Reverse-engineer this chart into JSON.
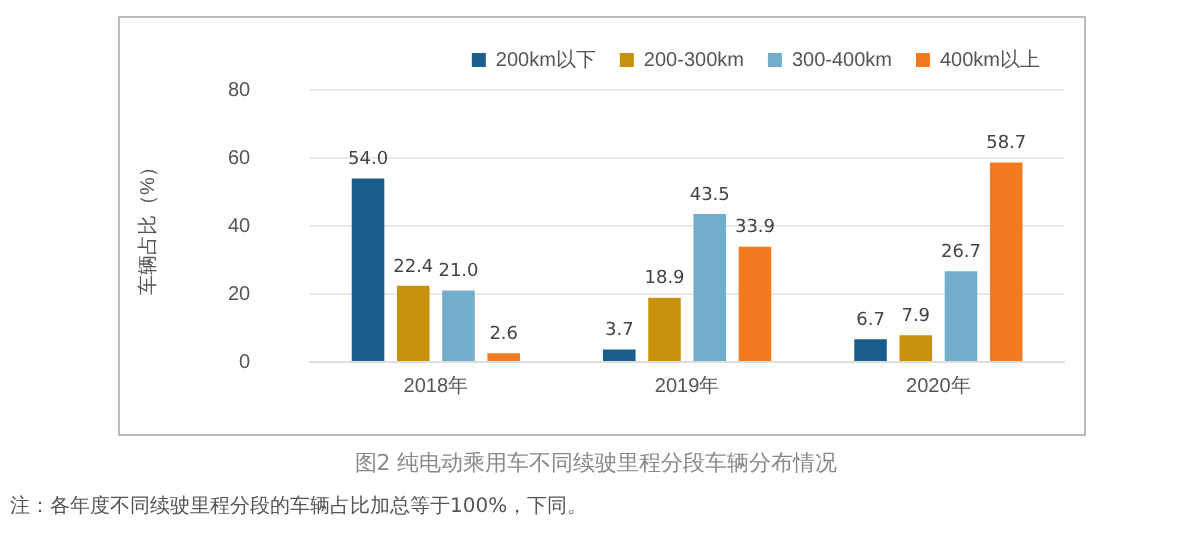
{
  "chart_data": {
    "type": "bar",
    "title": "图2 纯电动乘用车不同续驶里程分段车辆分布情况",
    "ylabel": "车辆占比（%）",
    "categories": [
      "2018年",
      "2019年",
      "2020年"
    ],
    "series": [
      {
        "name": "200km以下",
        "color": "#1b5e8c",
        "values": [
          54.0,
          3.7,
          6.7
        ],
        "value_labels": [
          "54.0",
          "3.7",
          "6.7"
        ]
      },
      {
        "name": "200-300km",
        "color": "#c8910c",
        "values": [
          22.4,
          18.9,
          7.9
        ],
        "value_labels": [
          "22.4",
          "18.9",
          "7.9"
        ]
      },
      {
        "name": "300-400km",
        "color": "#72aecb",
        "values": [
          21.0,
          43.5,
          26.7
        ],
        "value_labels": [
          "21.0",
          "43.5",
          "26.7"
        ]
      },
      {
        "name": "400km以上",
        "color": "#f47a20",
        "values": [
          2.6,
          33.9,
          58.7
        ],
        "value_labels": [
          "2.6",
          "33.9",
          "58.7"
        ]
      }
    ],
    "ylim": [
      0,
      80
    ],
    "yticks": [
      0,
      20,
      40,
      60,
      80
    ],
    "grid": "y",
    "legend": "top right",
    "annotations": [
      "注：各年度不同续驶里程分段的车辆占比加总等于100%，下同。"
    ]
  }
}
